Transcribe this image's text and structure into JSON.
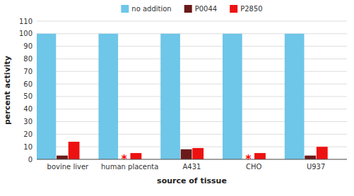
{
  "chart_data": {
    "type": "bar",
    "categories": [
      "bovine liver",
      "human placenta",
      "A431",
      "CHO",
      "U937"
    ],
    "series": [
      {
        "name": "no addition",
        "color": "#6EC6E8",
        "values": [
          100,
          100,
          100,
          100,
          100
        ]
      },
      {
        "name": "P0044",
        "color": "#6B1A1A",
        "values": [
          3,
          0,
          8,
          0,
          3
        ]
      },
      {
        "name": "P2850",
        "color": "#EE1111",
        "values": [
          14,
          5,
          9,
          5,
          10
        ]
      }
    ],
    "annotations": [
      {
        "text": "*",
        "category": "human placenta",
        "series": "P0044",
        "y": 1.0,
        "color": "#FF0000"
      },
      {
        "text": "*",
        "category": "CHO",
        "series": "P0044",
        "y": 1.0,
        "color": "#FF0000"
      }
    ],
    "x_label": "source of tissue",
    "y_label": "percent activity",
    "ylim": [
      0,
      110
    ],
    "yticks": [
      0,
      10,
      20,
      30,
      40,
      50,
      60,
      70,
      80,
      90,
      100,
      110
    ],
    "grid": true,
    "legend": "top"
  }
}
